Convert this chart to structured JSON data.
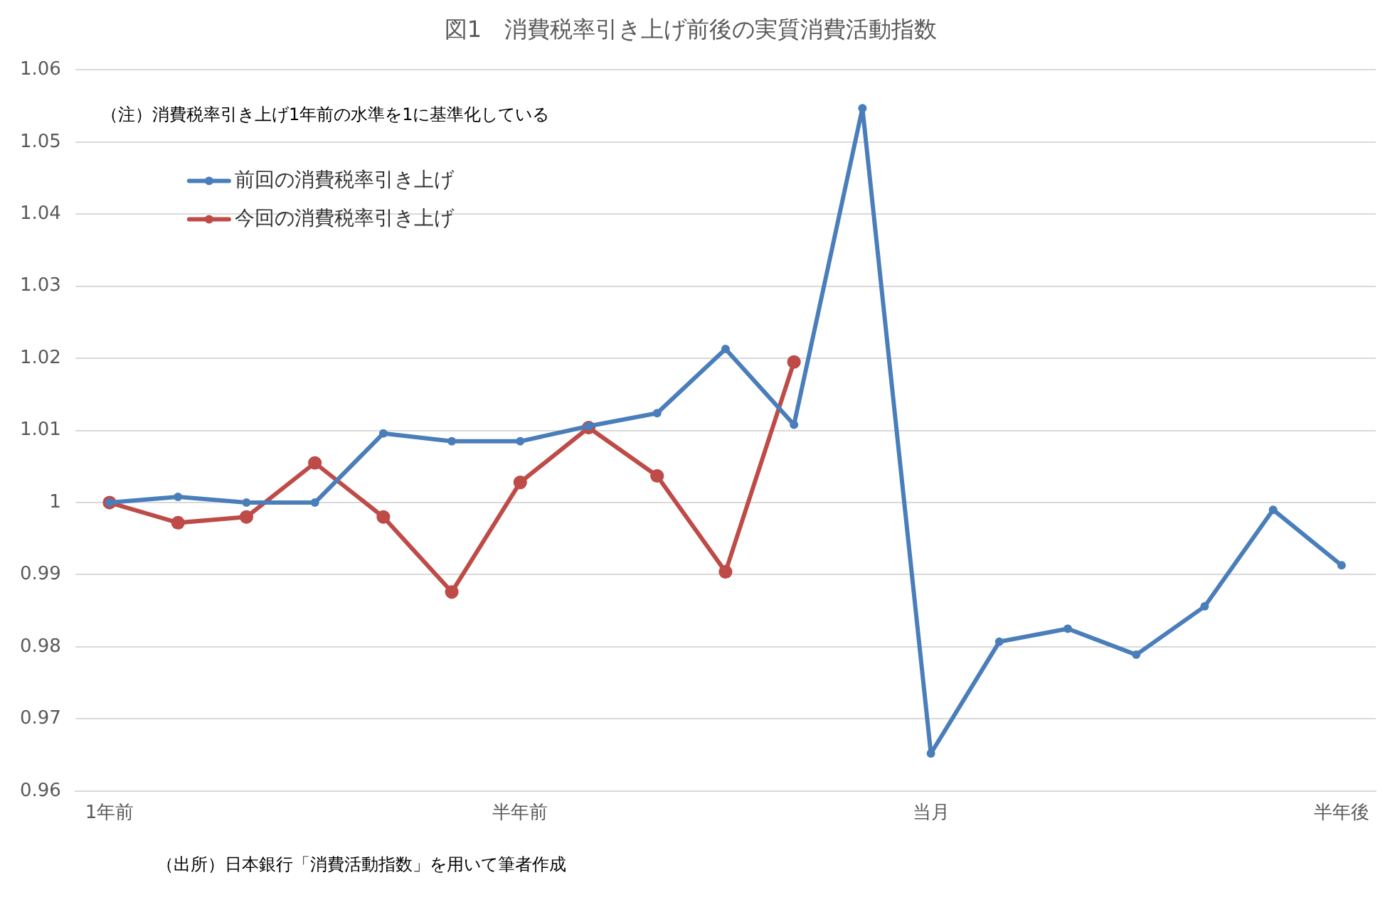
{
  "chart_data": {
    "type": "line",
    "title": "図1　消費税率引き上げ前後の実質消費活動指数",
    "categories": [
      "1年前",
      null,
      null,
      null,
      null,
      null,
      "半年前",
      null,
      null,
      null,
      null,
      null,
      "当月",
      null,
      null,
      null,
      null,
      null,
      "半年後"
    ],
    "series": [
      {
        "name": "前回の消費税率引き上げ",
        "color": "#4a7ebb",
        "values": [
          1.0,
          1.0008,
          1.0,
          1.0,
          1.0096,
          1.0085,
          1.0085,
          1.0106,
          1.0124,
          1.0213,
          1.0108,
          1.0547,
          0.9652,
          0.9807,
          0.9825,
          0.9789,
          0.9856,
          0.999,
          0.9913
        ]
      },
      {
        "name": "今回の消費税率引き上げ",
        "color": "#be4b48",
        "values": [
          1.0,
          0.9972,
          0.998,
          1.0055,
          0.998,
          0.9876,
          1.0028,
          1.0104,
          1.0037,
          0.9904,
          1.0195,
          null,
          null,
          null,
          null,
          null,
          null,
          null,
          null
        ]
      }
    ],
    "ylim": [
      0.96,
      1.06
    ],
    "yticks": [
      0.96,
      0.97,
      0.98,
      0.99,
      1,
      1.01,
      1.02,
      1.03,
      1.04,
      1.05,
      1.06
    ],
    "grid": "y",
    "legend": "top left",
    "marker": "circle",
    "line_style": "solid",
    "annotations": [
      "（注）消費税率引き上げ1年前の水準を1に基準化している",
      "（出所）日本銀行「消費活動指数」を用いて筆者作成"
    ]
  }
}
